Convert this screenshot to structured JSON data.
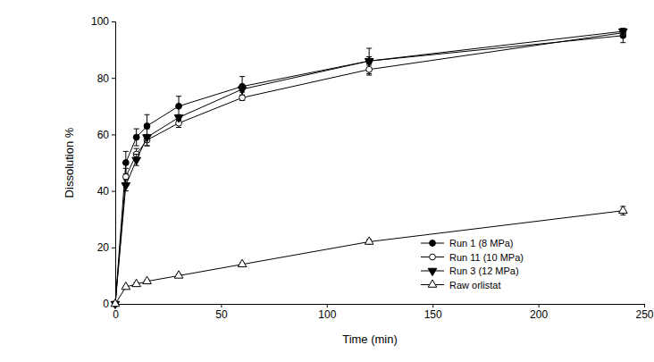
{
  "chart_data": {
    "type": "line",
    "x_label": "Time (min)",
    "y_label": "Dissolution %",
    "x": [
      0,
      5,
      10,
      15,
      30,
      60,
      120,
      240
    ],
    "xlim": [
      0,
      250
    ],
    "xticks": [
      0,
      50,
      100,
      150,
      200,
      250
    ],
    "ylim": [
      0,
      100
    ],
    "yticks": [
      0,
      20,
      40,
      60,
      80,
      100
    ],
    "grid": false,
    "legend": "bottom-right",
    "series": [
      {
        "name": "Run 1 (8 MPa)",
        "color": "#000000",
        "marker": "circle",
        "line_style": "solid",
        "values": [
          0,
          50,
          59,
          63,
          70,
          77,
          86,
          95
        ],
        "errors": [
          0,
          4,
          3,
          4,
          3.5,
          3.5,
          4.5,
          2.5
        ]
      },
      {
        "name": "Run 11 (10 MPa)",
        "color": "#000000",
        "marker": "circle-open",
        "line_style": "solid",
        "values": [
          0,
          45,
          53,
          58,
          64,
          73,
          83,
          96
        ],
        "errors": [
          0,
          3,
          2,
          2,
          1.5,
          1,
          2,
          1
        ]
      },
      {
        "name": "Run 3 (12 MPa)",
        "color": "#000000",
        "marker": "triangle-down",
        "line_style": "solid",
        "values": [
          0,
          42,
          51,
          59,
          66,
          76,
          86,
          96.5
        ],
        "errors": [
          0,
          2,
          2,
          3,
          1,
          1,
          1.5,
          1
        ]
      },
      {
        "name": "Raw orlistat",
        "color": "#000000",
        "marker": "triangle-open",
        "line_style": "solid",
        "values": [
          0,
          6,
          7,
          8,
          10,
          14,
          22,
          33
        ],
        "errors": [
          0,
          0.5,
          0.5,
          0.5,
          0.5,
          0.5,
          0.8,
          1.5
        ]
      }
    ]
  }
}
